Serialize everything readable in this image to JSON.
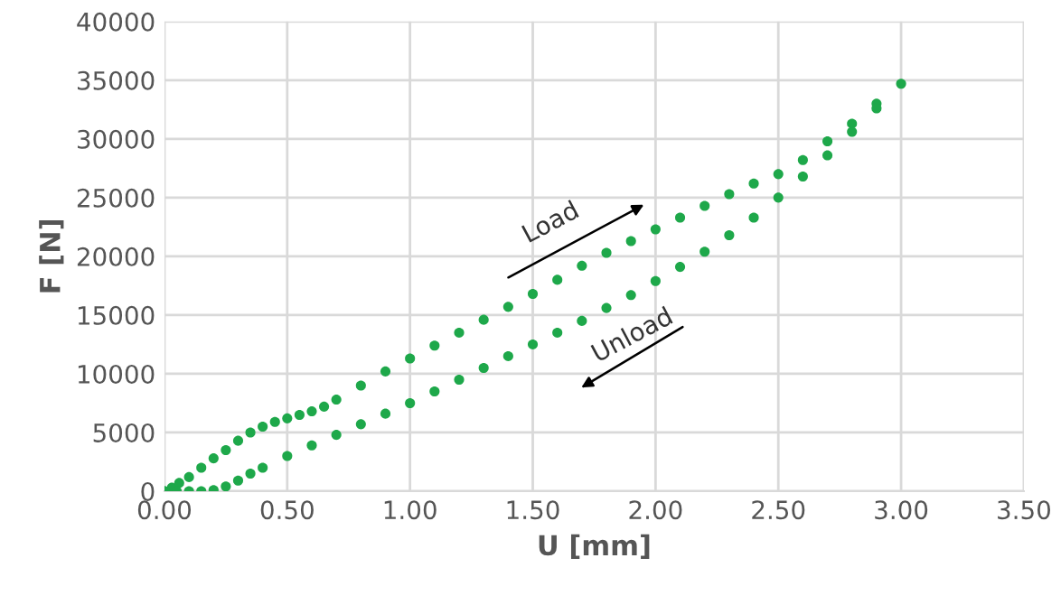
{
  "chart_data": {
    "type": "scatter",
    "xlabel": "U [mm]",
    "ylabel": "F [N]",
    "series": [
      {
        "color": "#1ea84a",
        "x": [
          0,
          0.03,
          0.06,
          0.1,
          0.15,
          0.2,
          0.25,
          0.3,
          0.35,
          0.4,
          0.45,
          0.5,
          0.55,
          0.6,
          0.65,
          0.7,
          0.8,
          0.9,
          1.0,
          1.1,
          1.2,
          1.3,
          1.4,
          1.5,
          1.6,
          1.7,
          1.8,
          1.9,
          2.0,
          2.1,
          2.2,
          2.3,
          2.4,
          2.5,
          2.6,
          2.7,
          2.8,
          2.9,
          3.0
        ],
        "values": [
          0,
          300,
          700,
          1200,
          2000,
          2800,
          3500,
          4300,
          5000,
          5500,
          5900,
          6200,
          6500,
          6800,
          7200,
          7800,
          9000,
          10200,
          11300,
          12400,
          13500,
          14600,
          15700,
          16800,
          18000,
          19200,
          20300,
          21300,
          22300,
          23300,
          24300,
          25300,
          26200,
          27000,
          28200,
          29800,
          31300,
          33000,
          34700
        ]
      },
      {
        "color": "#1ea84a",
        "x": [
          0,
          0.05,
          0.1,
          0.15,
          0.2,
          0.25,
          0.3,
          0.35,
          0.4,
          0.5,
          0.6,
          0.7,
          0.8,
          0.9,
          1.0,
          1.1,
          1.2,
          1.3,
          1.4,
          1.5,
          1.6,
          1.7,
          1.8,
          1.9,
          2.0,
          2.1,
          2.2,
          2.3,
          2.4,
          2.5,
          2.6,
          2.7,
          2.8,
          2.9
        ],
        "values": [
          0,
          0,
          0,
          0,
          100,
          400,
          900,
          1500,
          2000,
          3000,
          3900,
          4800,
          5700,
          6600,
          7500,
          8500,
          9500,
          10500,
          11500,
          12500,
          13500,
          14500,
          15600,
          16700,
          17900,
          19100,
          20400,
          21800,
          23300,
          25000,
          26800,
          28600,
          30600,
          32600
        ]
      }
    ],
    "annotations": [
      "Load",
      "Unload"
    ],
    "xlim": [
      0,
      3.5
    ],
    "xticks": [
      {
        "value": 0,
        "label": "0.00"
      },
      {
        "value": 0.5,
        "label": "0.50"
      },
      {
        "value": 1,
        "label": "1.00"
      },
      {
        "value": 1.5,
        "label": "1.50"
      },
      {
        "value": 2,
        "label": "2.00"
      },
      {
        "value": 2.5,
        "label": "2.50"
      },
      {
        "value": 3,
        "label": "3.00"
      },
      {
        "value": 3.5,
        "label": "3.50"
      }
    ],
    "ylim": [
      0,
      40000
    ],
    "yticks": [
      0,
      5000,
      10000,
      15000,
      20000,
      25000,
      30000,
      35000,
      40000
    ],
    "grid": true,
    "marker": "circle"
  }
}
